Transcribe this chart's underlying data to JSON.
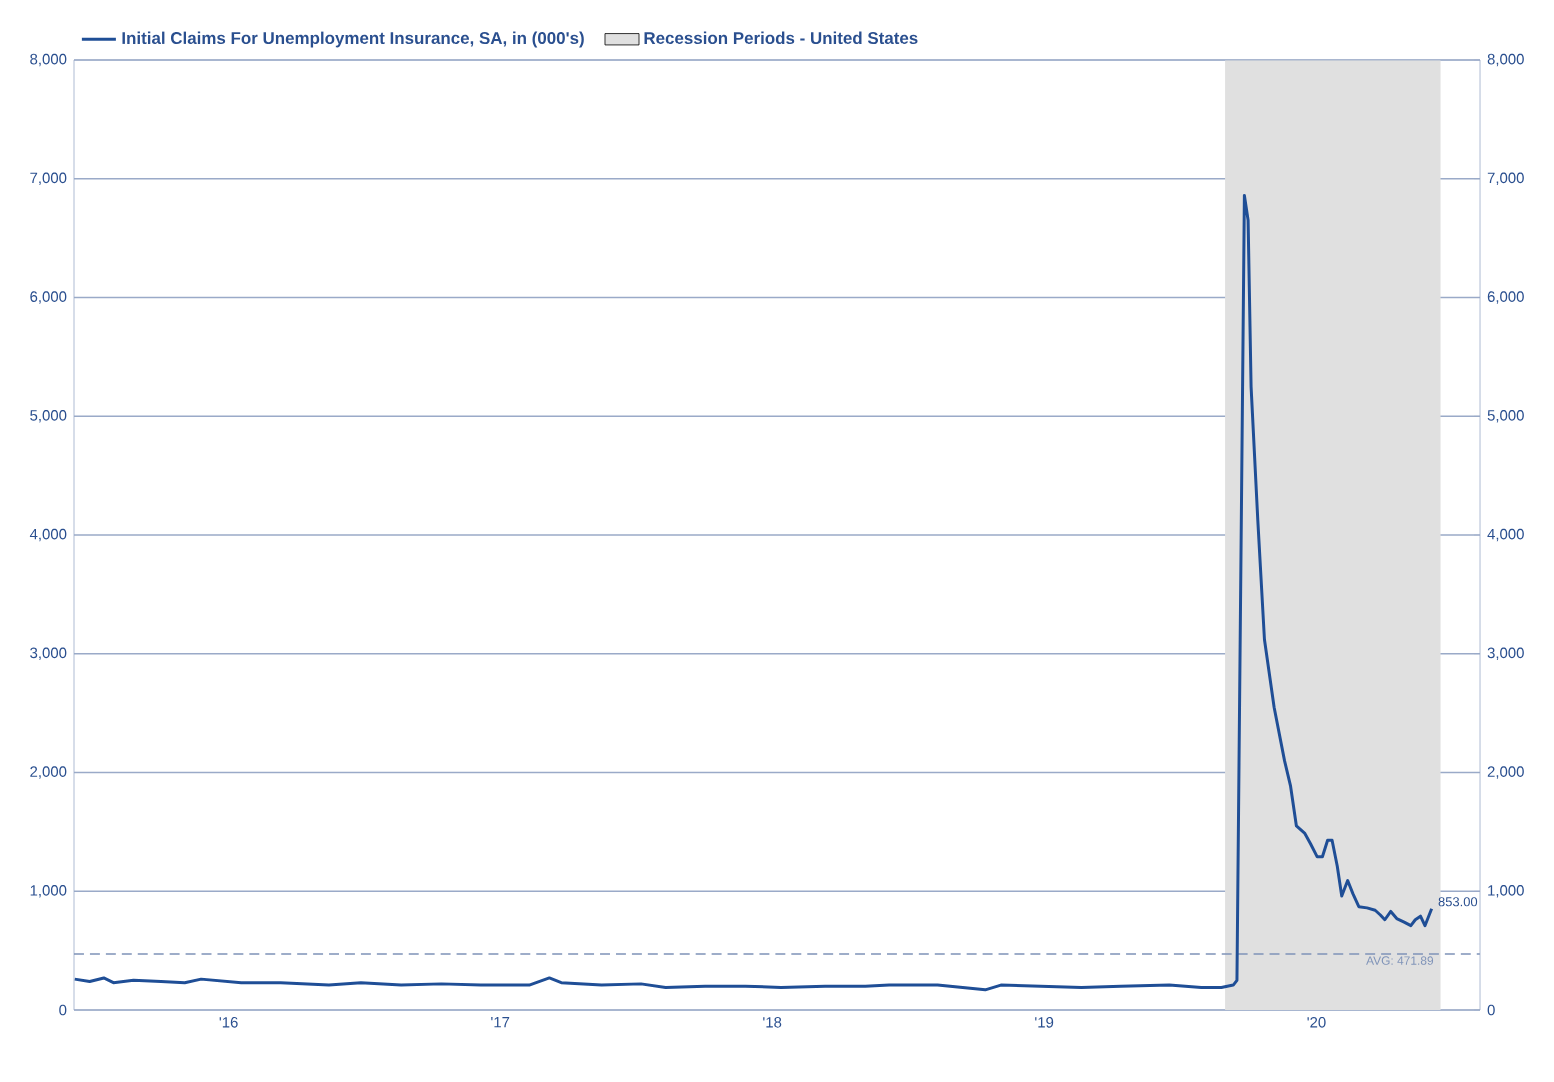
{
  "chart_data": {
    "type": "line",
    "xlim": [
      "2015-12-06",
      "2021-02-06"
    ],
    "xticks": [
      {
        "value": "2016-07-01",
        "label": "'16"
      },
      {
        "value": "2017-07-01",
        "label": "'17"
      },
      {
        "value": "2018-07-01",
        "label": "'18"
      },
      {
        "value": "2019-07-01",
        "label": "'19"
      },
      {
        "value": "2020-07-01",
        "label": "'20"
      }
    ],
    "ylim": [
      0,
      8000
    ],
    "yticks": [
      {
        "value": 0,
        "label": "0"
      },
      {
        "value": 1000,
        "label": "1,000"
      },
      {
        "value": 2000,
        "label": "2,000"
      },
      {
        "value": 3000,
        "label": "3,000"
      },
      {
        "value": 4000,
        "label": "4,000"
      },
      {
        "value": 5000,
        "label": "5,000"
      },
      {
        "value": 6000,
        "label": "6,000"
      },
      {
        "value": 7000,
        "label": "7,000"
      },
      {
        "value": 8000,
        "label": "8,000"
      }
    ],
    "y2lim": [
      0,
      8000
    ],
    "y2ticks": [
      {
        "value": 0,
        "label": "0"
      },
      {
        "value": 1000,
        "label": "1,000"
      },
      {
        "value": 2000,
        "label": "2,000"
      },
      {
        "value": 3000,
        "label": "3,000"
      },
      {
        "value": 4000,
        "label": "4,000"
      },
      {
        "value": 5000,
        "label": "5,000"
      },
      {
        "value": 6000,
        "label": "6,000"
      },
      {
        "value": 7000,
        "label": "7,000"
      },
      {
        "value": 8000,
        "label": "8,000"
      }
    ],
    "grid": "y",
    "legend": "top left",
    "marker": "none",
    "line_style": "solid",
    "series": [
      {
        "name": "Initial Claims For Unemployment Insurance, SA, in (000's)",
        "color": "#1f4e96",
        "x": [
          "2015-12-07",
          "2015-12-27",
          "2016-01-15",
          "2016-01-28",
          "2016-02-24",
          "2016-04-01",
          "2016-05-03",
          "2016-05-25",
          "2016-07-18",
          "2016-09-09",
          "2016-11-13",
          "2016-12-26",
          "2017-02-18",
          "2017-04-13",
          "2017-06-05",
          "2017-08-09",
          "2017-09-05",
          "2017-09-21",
          "2017-11-14",
          "2018-01-06",
          "2018-02-08",
          "2018-04-02",
          "2018-05-26",
          "2018-07-13",
          "2018-09-10",
          "2018-11-03",
          "2018-12-05",
          "2019-02-08",
          "2019-04-13",
          "2019-05-04",
          "2019-06-27",
          "2019-08-20",
          "2019-10-12",
          "2019-12-16",
          "2020-01-28",
          "2020-02-24",
          "2020-03-11",
          "2020-03-16",
          "2020-03-26",
          "2020-03-31",
          "2020-04-04",
          "2020-04-13",
          "2020-04-22",
          "2020-05-05",
          "2020-05-19",
          "2020-05-27",
          "2020-06-04",
          "2020-06-15",
          "2020-06-23",
          "2020-07-02",
          "2020-07-09",
          "2020-07-16",
          "2020-07-22",
          "2020-07-29",
          "2020-08-04",
          "2020-08-12",
          "2020-08-19",
          "2020-08-27",
          "2020-09-07",
          "2020-09-18",
          "2020-09-25",
          "2020-10-01",
          "2020-10-09",
          "2020-10-17",
          "2020-10-27",
          "2020-11-05",
          "2020-11-11",
          "2020-11-18",
          "2020-11-24",
          "2020-12-03"
        ],
        "values": [
          260,
          240,
          270,
          230,
          250,
          240,
          230,
          260,
          230,
          230,
          210,
          230,
          210,
          220,
          210,
          210,
          270,
          230,
          210,
          220,
          190,
          200,
          200,
          190,
          200,
          200,
          210,
          210,
          170,
          210,
          200,
          190,
          200,
          210,
          190,
          190,
          210,
          250,
          6860,
          6650,
          5250,
          4130,
          3120,
          2550,
          2100,
          1890,
          1550,
          1490,
          1400,
          1290,
          1290,
          1430,
          1430,
          1210,
          960,
          1090,
          980,
          870,
          860,
          840,
          800,
          760,
          830,
          770,
          740,
          710,
          760,
          790,
          710,
          853
        ]
      }
    ],
    "bands": [
      {
        "axis": "x",
        "from": "2020-02-29",
        "to": "2020-12-15",
        "label": "Recession Periods - United States",
        "color": "#e0e0e0"
      }
    ],
    "ref_lines": [
      {
        "axis": "y",
        "value": 471.89,
        "label": "AVG: 471.89",
        "color": "#7f93b8",
        "line_style": "dashed"
      }
    ],
    "annotations": [
      {
        "text": "853.00",
        "x": "2020-12-03",
        "y": 853
      }
    ]
  }
}
